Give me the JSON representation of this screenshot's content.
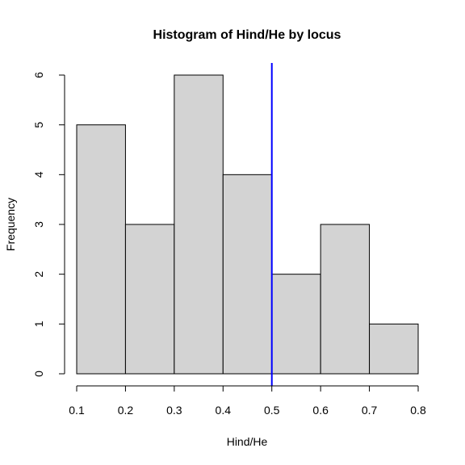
{
  "chart_data": {
    "type": "bar",
    "title": "Histogram of Hind/He by locus",
    "xlabel": "Hind/He",
    "ylabel": "Frequency",
    "bins": [
      {
        "from": 0.1,
        "to": 0.2,
        "count": 5
      },
      {
        "from": 0.2,
        "to": 0.3,
        "count": 3
      },
      {
        "from": 0.3,
        "to": 0.4,
        "count": 6
      },
      {
        "from": 0.4,
        "to": 0.5,
        "count": 4
      },
      {
        "from": 0.5,
        "to": 0.6,
        "count": 2
      },
      {
        "from": 0.6,
        "to": 0.7,
        "count": 3
      },
      {
        "from": 0.7,
        "to": 0.8,
        "count": 1
      }
    ],
    "xlim": [
      0.1,
      0.8
    ],
    "ylim": [
      0,
      6
    ],
    "x_ticks": [
      "0.1",
      "0.2",
      "0.3",
      "0.4",
      "0.5",
      "0.6",
      "0.7",
      "0.8"
    ],
    "y_ticks": [
      "0",
      "1",
      "2",
      "3",
      "4",
      "5",
      "6"
    ],
    "vline": {
      "x": 0.5,
      "color": "#0000ff"
    },
    "bar_fill": "#d3d3d3",
    "bar_stroke": "#000000",
    "grid": false,
    "legend": "none"
  }
}
